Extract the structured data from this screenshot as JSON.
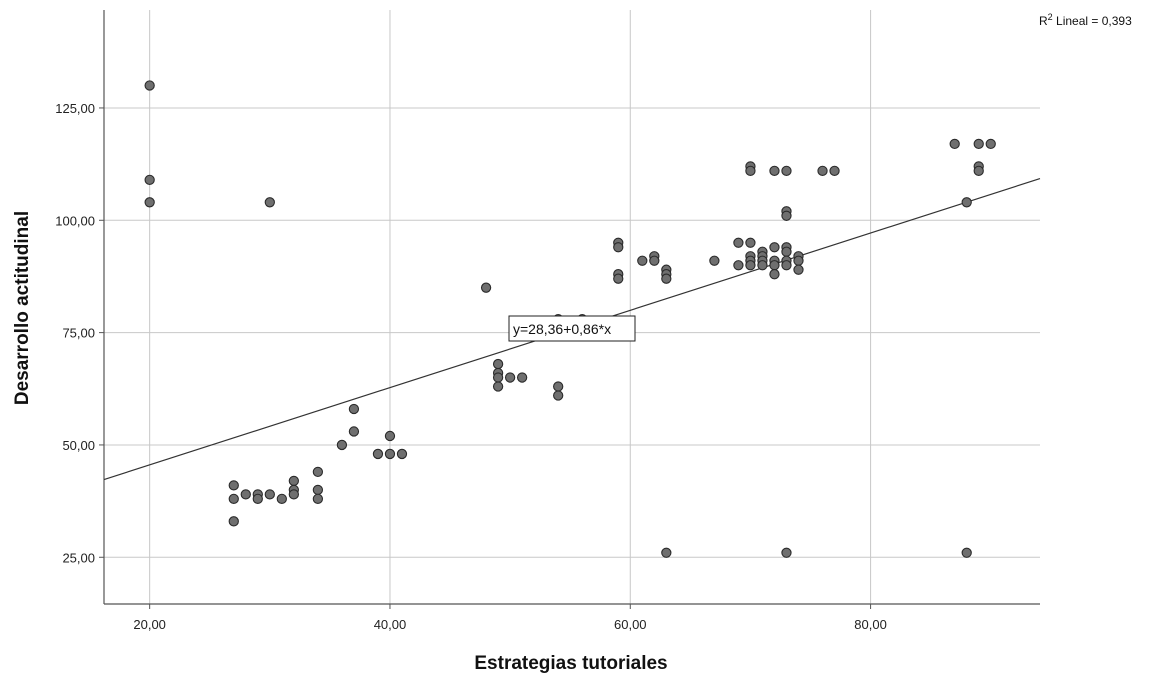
{
  "chart_data": {
    "type": "scatter",
    "xlabel": "Estrategias tutoriales",
    "ylabel": "Desarrollo actitudinal",
    "x_ticks": [
      20,
      40,
      60,
      80
    ],
    "x_tick_labels": [
      "20,00",
      "40,00",
      "60,00",
      "80,00"
    ],
    "y_ticks": [
      25,
      50,
      75,
      100,
      125
    ],
    "y_tick_labels": [
      "25,00",
      "50,00",
      "75,00",
      "100,00",
      "125,00"
    ],
    "xlim": [
      16.2,
      94.1
    ],
    "ylim": [
      14.6,
      146.8
    ],
    "grid": true,
    "r2_prefix": "R",
    "r2_sup": "2",
    "r2_text": " Lineal = 0,393",
    "fit": {
      "intercept": 28.36,
      "slope": 0.86,
      "label": "y=28,36+0,86*x"
    },
    "colors": {
      "point_fill": "#6f6f6f",
      "point_stroke": "#2a2a2a",
      "grid": "#c8c8c8",
      "axis": "#555555",
      "fit_line": "#333333"
    },
    "points": [
      [
        20,
        130
      ],
      [
        20,
        109
      ],
      [
        20,
        104
      ],
      [
        27,
        41
      ],
      [
        27,
        38
      ],
      [
        27,
        33
      ],
      [
        28,
        39
      ],
      [
        29,
        39
      ],
      [
        29,
        38
      ],
      [
        30,
        104
      ],
      [
        30,
        39
      ],
      [
        31,
        38
      ],
      [
        32,
        42
      ],
      [
        32,
        40
      ],
      [
        32,
        39
      ],
      [
        34,
        44
      ],
      [
        34,
        40
      ],
      [
        34,
        38
      ],
      [
        36,
        50
      ],
      [
        37,
        58
      ],
      [
        37,
        53
      ],
      [
        39,
        48
      ],
      [
        40,
        52
      ],
      [
        40,
        48
      ],
      [
        41,
        48
      ],
      [
        48,
        85
      ],
      [
        49,
        68
      ],
      [
        49,
        66
      ],
      [
        49,
        65
      ],
      [
        49,
        63
      ],
      [
        50,
        65
      ],
      [
        51,
        65
      ],
      [
        54,
        78
      ],
      [
        54,
        63
      ],
      [
        54,
        61
      ],
      [
        56,
        78
      ],
      [
        59,
        95
      ],
      [
        59,
        94
      ],
      [
        59,
        88
      ],
      [
        59,
        87
      ],
      [
        61,
        91
      ],
      [
        62,
        92
      ],
      [
        62,
        91
      ],
      [
        63,
        89
      ],
      [
        63,
        88
      ],
      [
        63,
        87
      ],
      [
        63,
        26
      ],
      [
        67,
        91
      ],
      [
        69,
        95
      ],
      [
        69,
        90
      ],
      [
        70,
        112
      ],
      [
        70,
        111
      ],
      [
        70,
        95
      ],
      [
        70,
        92
      ],
      [
        70,
        91
      ],
      [
        70,
        90
      ],
      [
        71,
        93
      ],
      [
        71,
        92
      ],
      [
        71,
        91
      ],
      [
        71,
        90
      ],
      [
        72,
        111
      ],
      [
        72,
        94
      ],
      [
        72,
        91
      ],
      [
        72,
        90
      ],
      [
        72,
        88
      ],
      [
        73,
        111
      ],
      [
        73,
        102
      ],
      [
        73,
        101
      ],
      [
        73,
        94
      ],
      [
        73,
        93
      ],
      [
        73,
        91
      ],
      [
        73,
        90
      ],
      [
        73,
        26
      ],
      [
        74,
        92
      ],
      [
        74,
        91
      ],
      [
        74,
        89
      ],
      [
        76,
        111
      ],
      [
        77,
        111
      ],
      [
        87,
        117
      ],
      [
        88,
        104
      ],
      [
        88,
        26
      ],
      [
        89,
        117
      ],
      [
        89,
        112
      ],
      [
        89,
        111
      ],
      [
        90,
        117
      ]
    ]
  }
}
